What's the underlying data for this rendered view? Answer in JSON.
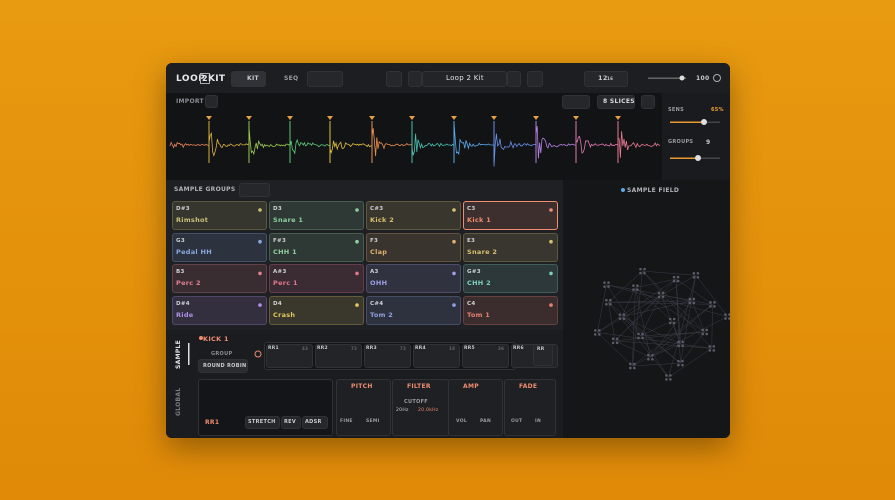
{
  "header": {
    "logo_left": "LOOP",
    "logo_mid": "2",
    "logo_right": "KIT",
    "tabs": [
      "KIT",
      "SEQ"
    ],
    "preset": "Loop 2 Kit",
    "tempo_value": "12",
    "tempo_unit": "16",
    "volume": "100"
  },
  "slicer": {
    "import": "IMPORT",
    "slices": "8 SLICES",
    "sens_label": "SENS",
    "sens_value": "65%",
    "groups_label": "GROUPS",
    "groups_value": "9",
    "colors": [
      "#e8825a",
      "#d8b040",
      "#9cc850",
      "#5cc878",
      "#e0c040",
      "#e89050",
      "#48c0b0",
      "#5aa8e8",
      "#6a90e8",
      "#b080e0",
      "#e078b0",
      "#e87890"
    ]
  },
  "sample_groups": {
    "title": "SAMPLE GROUPS",
    "pads": [
      {
        "note": "D#3",
        "name": "Rimshot",
        "color": "#c8c07a"
      },
      {
        "note": "D3",
        "name": "Snare 1",
        "color": "#8fd0a0"
      },
      {
        "note": "C#3",
        "name": "Kick 2",
        "color": "#d9c070"
      },
      {
        "note": "C3",
        "name": "Kick 1",
        "color": "#f08c70"
      },
      {
        "note": "G3",
        "name": "Pedal HH",
        "color": "#8aa8e0"
      },
      {
        "note": "F#3",
        "name": "CHH 1",
        "color": "#90d0a0"
      },
      {
        "note": "F3",
        "name": "Clap",
        "color": "#e0b070"
      },
      {
        "note": "E3",
        "name": "Snare 2",
        "color": "#d8c070"
      },
      {
        "note": "B3",
        "name": "Perc 2",
        "color": "#e08090"
      },
      {
        "note": "A#3",
        "name": "Perc 1",
        "color": "#e07890"
      },
      {
        "note": "A3",
        "name": "OHH",
        "color": "#a0a0e8"
      },
      {
        "note": "G#3",
        "name": "CHH 2",
        "color": "#80d0c0"
      },
      {
        "note": "D#4",
        "name": "Ride",
        "color": "#b090e8"
      },
      {
        "note": "D4",
        "name": "Crash",
        "color": "#e0c860"
      },
      {
        "note": "C#4",
        "name": "Tom 2",
        "color": "#90a0e0"
      },
      {
        "note": "C4",
        "name": "Tom 1",
        "color": "#e88070"
      }
    ]
  },
  "sample_field": {
    "title": "SAMPLE FIELD"
  },
  "editor": {
    "tabs": [
      "SAMPLE",
      "GLOBAL"
    ],
    "selected": "KICK 1",
    "group_label": "GROUP",
    "group_mode": "ROUND ROBIN",
    "round_robins": [
      {
        "label": "RR1",
        "value": "43"
      },
      {
        "label": "RR2",
        "value": "72"
      },
      {
        "label": "RR3",
        "value": "72"
      },
      {
        "label": "RR4",
        "value": "18"
      },
      {
        "label": "RR5",
        "value": "36"
      },
      {
        "label": "RR6"
      }
    ],
    "rr_button": "RR",
    "clip_label": "RR1",
    "clip_buttons": [
      "STRETCH",
      "REV",
      "ADSR"
    ],
    "pitch": {
      "title": "PITCH",
      "knobs": [
        "FINE",
        "SEMI"
      ]
    },
    "filter": {
      "title": "FILTER",
      "param": "CUTOFF",
      "low": "20Hz",
      "high": "20.0kHz"
    },
    "amp": {
      "title": "AMP",
      "knobs": [
        "VOL",
        "PAN"
      ]
    },
    "fade": {
      "title": "FADE",
      "knobs": [
        "OUT",
        "IN"
      ]
    }
  }
}
